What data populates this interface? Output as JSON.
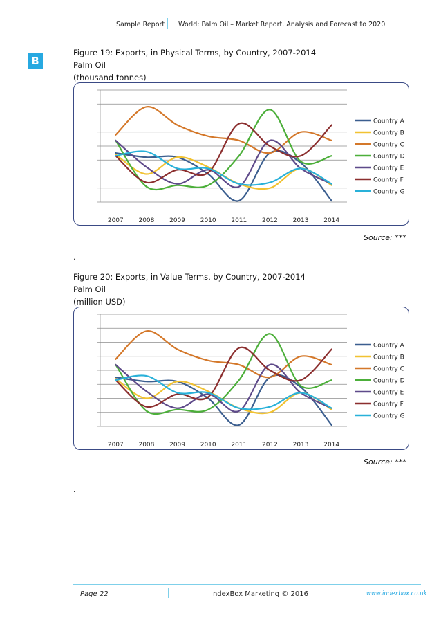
{
  "header": {
    "left": "Sample Report",
    "right": "World: Palm Oil – Market Report. Analysis and Forecast to 2020"
  },
  "logo": {
    "letter": "B"
  },
  "figures": [
    {
      "title_line1": "Figure 19: Exports, in Physical Terms, by Country, 2007-2014",
      "title_line2": "Palm Oil",
      "title_line3": "(thousand tonnes)",
      "source_label": "Source:",
      "source_value": "***",
      "after_note": "."
    },
    {
      "title_line1": "Figure 20: Exports, in Value Terms, by Country, 2007-2014",
      "title_line2": "Palm Oil",
      "title_line3": "(million USD)",
      "source_label": "Source:",
      "source_value": "***",
      "after_note": "."
    }
  ],
  "chart_data": [
    {
      "type": "line",
      "title": "Figure 19: Exports, in Physical Terms, by Country, 2007-2014",
      "categories": [
        "2007",
        "2008",
        "2009",
        "2010",
        "2011",
        "2012",
        "2013",
        "2014"
      ],
      "ylim": [
        0,
        8
      ],
      "grid": true,
      "legend": "right",
      "series": [
        {
          "name": "Country A",
          "color": "#3b5e8f",
          "values": [
            3.5,
            3.2,
            3.2,
            2.0,
            0.1,
            3.5,
            2.8,
            0.1
          ]
        },
        {
          "name": "Country B",
          "color": "#f1c232",
          "values": [
            3.4,
            2.0,
            3.2,
            2.5,
            1.3,
            1.0,
            2.4,
            1.2
          ]
        },
        {
          "name": "Country C",
          "color": "#d4782a",
          "values": [
            4.8,
            6.8,
            5.5,
            4.7,
            4.4,
            3.5,
            5.0,
            4.4
          ]
        },
        {
          "name": "Country D",
          "color": "#4caf3a",
          "values": [
            4.4,
            1.1,
            1.2,
            1.2,
            3.3,
            6.6,
            2.9,
            3.3
          ]
        },
        {
          "name": "Country E",
          "color": "#5e4a8a",
          "values": [
            4.4,
            2.5,
            1.3,
            2.3,
            1.1,
            4.4,
            2.4,
            1.3
          ]
        },
        {
          "name": "Country F",
          "color": "#8b2e2e",
          "values": [
            3.3,
            1.4,
            2.3,
            2.1,
            5.6,
            4.0,
            3.3,
            5.5
          ]
        },
        {
          "name": "Country G",
          "color": "#29b1d9",
          "values": [
            3.3,
            3.6,
            2.4,
            2.4,
            1.3,
            1.4,
            2.4,
            1.3
          ]
        }
      ]
    },
    {
      "type": "line",
      "title": "Figure 20: Exports, in Value Terms, by Country, 2007-2014",
      "categories": [
        "2007",
        "2008",
        "2009",
        "2010",
        "2011",
        "2012",
        "2013",
        "2014"
      ],
      "ylim": [
        0,
        8
      ],
      "grid": true,
      "legend": "right",
      "series": [
        {
          "name": "Country A",
          "color": "#3b5e8f",
          "values": [
            3.5,
            3.2,
            3.2,
            2.0,
            0.1,
            3.5,
            2.8,
            0.1
          ]
        },
        {
          "name": "Country B",
          "color": "#f1c232",
          "values": [
            3.4,
            2.0,
            3.2,
            2.5,
            1.3,
            1.0,
            2.4,
            1.2
          ]
        },
        {
          "name": "Country C",
          "color": "#d4782a",
          "values": [
            4.8,
            6.8,
            5.5,
            4.7,
            4.4,
            3.5,
            5.0,
            4.4
          ]
        },
        {
          "name": "Country D",
          "color": "#4caf3a",
          "values": [
            4.4,
            1.1,
            1.2,
            1.2,
            3.3,
            6.6,
            2.9,
            3.3
          ]
        },
        {
          "name": "Country E",
          "color": "#5e4a8a",
          "values": [
            4.4,
            2.5,
            1.3,
            2.3,
            1.1,
            4.4,
            2.4,
            1.3
          ]
        },
        {
          "name": "Country F",
          "color": "#8b2e2e",
          "values": [
            3.3,
            1.4,
            2.3,
            2.1,
            5.6,
            4.0,
            3.3,
            5.5
          ]
        },
        {
          "name": "Country G",
          "color": "#29b1d9",
          "values": [
            3.3,
            3.6,
            2.4,
            2.4,
            1.3,
            1.4,
            2.4,
            1.3
          ]
        }
      ]
    }
  ],
  "footer": {
    "page": "Page 22",
    "copyright": "IndexBox Marketing © 2016",
    "url": "www.indexbox.co.uk"
  }
}
